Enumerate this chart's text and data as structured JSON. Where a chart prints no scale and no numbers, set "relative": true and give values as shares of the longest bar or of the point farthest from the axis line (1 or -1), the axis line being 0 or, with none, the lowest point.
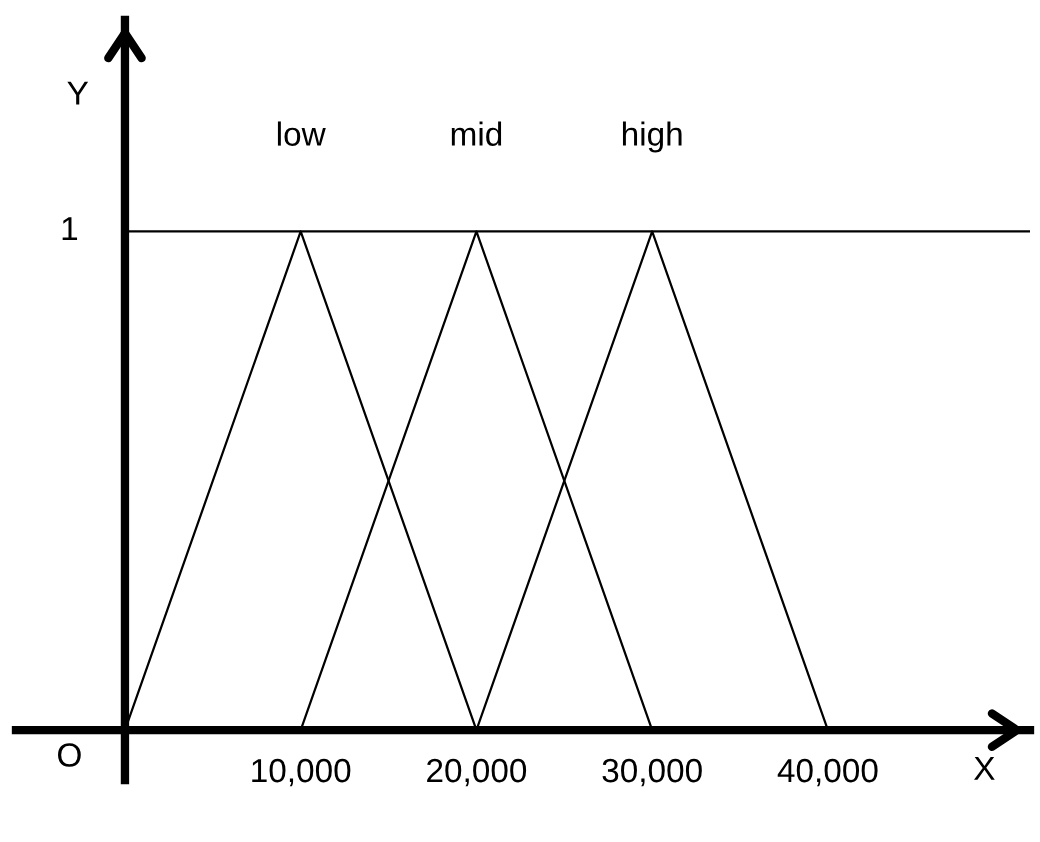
{
  "chart_data": {
    "type": "line",
    "xlabel": "X",
    "relative": true,
    "series": [
      {
        "name": "low",
        "color": "#000000",
        "x": [
          0,
          10000,
          20000
        ],
        "values": [
          0,
          1,
          0
        ]
      },
      {
        "name": "mid",
        "color": "#000000",
        "x": [
          10000,
          20000,
          30000
        ],
        "values": [
          0,
          1,
          0
        ]
      },
      {
        "name": "high",
        "color": "#000000",
        "x": [
          20000,
          30000,
          40000
        ],
        "values": [
          0,
          1,
          0
        ]
      }
    ],
    "xlim": [
      -6200,
      51500
    ],
    "xticks": [
      {
        "value": 10000,
        "label": "10,000"
      },
      {
        "value": 20000,
        "label": "20,000"
      },
      {
        "value": 30000,
        "label": "30,000"
      },
      {
        "value": 40000,
        "label": "40,000"
      }
    ],
    "annotations": [
      {
        "text": "O",
        "x": 0,
        "y": 0
      },
      "Y"
    ],
    "ref_lines": [
      {
        "axis": "y",
        "value": 1,
        "label": "1",
        "color": "#000000"
      }
    ],
    "grid": false,
    "legend": false,
    "marker": "none",
    "line_style": "solid"
  }
}
